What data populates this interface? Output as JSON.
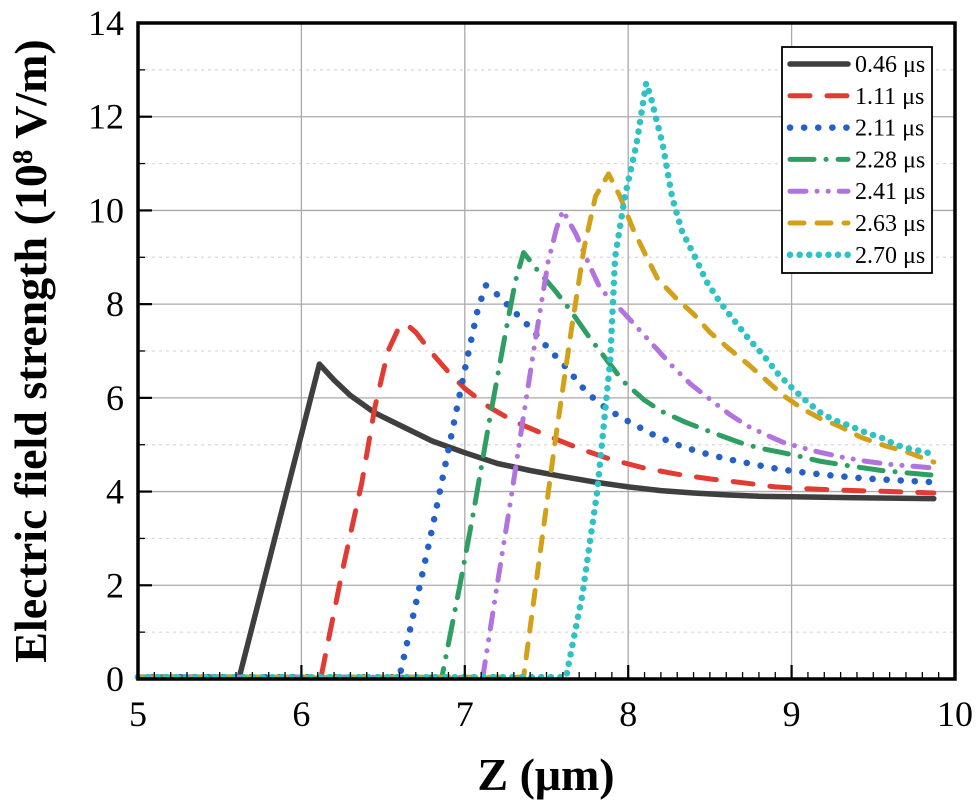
{
  "chart_data": {
    "type": "line",
    "title": "",
    "xlabel": "Z (μm)",
    "ylabel": "Electric field strength (10⁸ V/m)",
    "ylabel_parts": {
      "prefix": "Electric field strength (10",
      "sup": "8",
      "suffix": " V/m)"
    },
    "xlim": [
      5,
      10
    ],
    "ylim": [
      0,
      14
    ],
    "x_major_ticks": [
      5,
      6,
      7,
      8,
      9,
      10
    ],
    "x_minor_tick_step": 0.1,
    "y_major_ticks": [
      0,
      2,
      4,
      6,
      8,
      10,
      12,
      14
    ],
    "y_minor_ticks": [
      1,
      3,
      5,
      7,
      9,
      11,
      13
    ],
    "grid": true,
    "grid_major_color": "#aaaaaa",
    "grid_minor_color": "#d9d9d9",
    "legend_position": "top-right",
    "series": [
      {
        "name": "0.46 μs",
        "color": "#3f3f3f",
        "linestyle": "solid",
        "points": [
          [
            5.0,
            0.04
          ],
          [
            5.62,
            0.04
          ],
          [
            6.11,
            6.72
          ],
          [
            6.2,
            6.38
          ],
          [
            6.3,
            6.05
          ],
          [
            6.45,
            5.68
          ],
          [
            6.6,
            5.42
          ],
          [
            6.8,
            5.08
          ],
          [
            7.0,
            4.83
          ],
          [
            7.2,
            4.6
          ],
          [
            7.4,
            4.45
          ],
          [
            7.6,
            4.32
          ],
          [
            7.8,
            4.2
          ],
          [
            8.0,
            4.1
          ],
          [
            8.2,
            4.02
          ],
          [
            8.4,
            3.97
          ],
          [
            8.6,
            3.93
          ],
          [
            8.8,
            3.9
          ],
          [
            9.0,
            3.89
          ],
          [
            9.2,
            3.88
          ],
          [
            9.4,
            3.87
          ],
          [
            9.6,
            3.86
          ],
          [
            9.87,
            3.85
          ]
        ]
      },
      {
        "name": "1.11 μs",
        "color": "#e23b33",
        "linestyle": "dashed",
        "points": [
          [
            5.0,
            0.04
          ],
          [
            6.12,
            0.04
          ],
          [
            6.25,
            2.3
          ],
          [
            6.37,
            4.2
          ],
          [
            6.45,
            5.8
          ],
          [
            6.53,
            7.0
          ],
          [
            6.59,
            7.45
          ],
          [
            6.64,
            7.58
          ],
          [
            6.7,
            7.4
          ],
          [
            6.8,
            6.95
          ],
          [
            6.9,
            6.55
          ],
          [
            7.0,
            6.2
          ],
          [
            7.15,
            5.8
          ],
          [
            7.3,
            5.5
          ],
          [
            7.5,
            5.2
          ],
          [
            7.7,
            4.92
          ],
          [
            7.9,
            4.68
          ],
          [
            8.1,
            4.5
          ],
          [
            8.3,
            4.37
          ],
          [
            8.5,
            4.27
          ],
          [
            8.7,
            4.19
          ],
          [
            8.9,
            4.1
          ],
          [
            9.1,
            4.06
          ],
          [
            9.3,
            4.03
          ],
          [
            9.5,
            4.01
          ],
          [
            9.7,
            3.99
          ],
          [
            9.87,
            3.97
          ]
        ]
      },
      {
        "name": "2.11 μs",
        "color": "#2361c9",
        "linestyle": "dotted",
        "points": [
          [
            5.0,
            0.04
          ],
          [
            6.6,
            0.04
          ],
          [
            6.7,
            1.6
          ],
          [
            6.8,
            3.2
          ],
          [
            6.9,
            4.9
          ],
          [
            7.0,
            6.6
          ],
          [
            7.08,
            7.9
          ],
          [
            7.13,
            8.4
          ],
          [
            7.2,
            8.2
          ],
          [
            7.3,
            7.85
          ],
          [
            7.4,
            7.5
          ],
          [
            7.5,
            7.1
          ],
          [
            7.62,
            6.65
          ],
          [
            7.75,
            6.1
          ],
          [
            7.87,
            5.76
          ],
          [
            8.0,
            5.5
          ],
          [
            8.15,
            5.22
          ],
          [
            8.3,
            5.0
          ],
          [
            8.44,
            4.84
          ],
          [
            8.6,
            4.7
          ],
          [
            8.77,
            4.58
          ],
          [
            8.92,
            4.48
          ],
          [
            9.07,
            4.41
          ],
          [
            9.25,
            4.34
          ],
          [
            9.45,
            4.28
          ],
          [
            9.65,
            4.24
          ],
          [
            9.87,
            4.2
          ]
        ]
      },
      {
        "name": "2.28 μs",
        "color": "#2f9e62",
        "linestyle": "dash-dot",
        "points": [
          [
            5.0,
            0.04
          ],
          [
            6.86,
            0.04
          ],
          [
            6.97,
            2.0
          ],
          [
            7.05,
            3.5
          ],
          [
            7.15,
            5.5
          ],
          [
            7.25,
            7.4
          ],
          [
            7.31,
            8.5
          ],
          [
            7.36,
            9.1
          ],
          [
            7.45,
            8.7
          ],
          [
            7.55,
            8.3
          ],
          [
            7.65,
            7.85
          ],
          [
            7.75,
            7.35
          ],
          [
            7.87,
            6.8
          ],
          [
            7.97,
            6.35
          ],
          [
            8.1,
            5.95
          ],
          [
            8.2,
            5.72
          ],
          [
            8.35,
            5.48
          ],
          [
            8.5,
            5.28
          ],
          [
            8.68,
            5.05
          ],
          [
            8.8,
            4.93
          ],
          [
            8.93,
            4.84
          ],
          [
            9.05,
            4.75
          ],
          [
            9.17,
            4.65
          ],
          [
            9.35,
            4.55
          ],
          [
            9.55,
            4.45
          ],
          [
            9.7,
            4.4
          ],
          [
            9.87,
            4.35
          ]
        ]
      },
      {
        "name": "2.41 μs",
        "color": "#b273dc",
        "linestyle": "dash-dot-dot",
        "points": [
          [
            5.0,
            0.04
          ],
          [
            7.11,
            0.04
          ],
          [
            7.2,
            2.05
          ],
          [
            7.28,
            3.8
          ],
          [
            7.35,
            5.4
          ],
          [
            7.43,
            7.2
          ],
          [
            7.51,
            8.9
          ],
          [
            7.56,
            9.6
          ],
          [
            7.6,
            10.0
          ],
          [
            7.68,
            9.5
          ],
          [
            7.76,
            8.85
          ],
          [
            7.83,
            8.33
          ],
          [
            7.95,
            7.9
          ],
          [
            8.05,
            7.52
          ],
          [
            8.16,
            7.1
          ],
          [
            8.27,
            6.68
          ],
          [
            8.38,
            6.3
          ],
          [
            8.5,
            5.97
          ],
          [
            8.62,
            5.65
          ],
          [
            8.73,
            5.4
          ],
          [
            8.85,
            5.2
          ],
          [
            8.95,
            5.05
          ],
          [
            9.07,
            4.93
          ],
          [
            9.17,
            4.84
          ],
          [
            9.3,
            4.74
          ],
          [
            9.45,
            4.65
          ],
          [
            9.6,
            4.58
          ],
          [
            9.75,
            4.54
          ],
          [
            9.87,
            4.5
          ]
        ]
      },
      {
        "name": "2.63 μs",
        "color": "#d2a119",
        "linestyle": "dashed-medium",
        "points": [
          [
            5.0,
            0.04
          ],
          [
            7.36,
            0.04
          ],
          [
            7.45,
            2.4
          ],
          [
            7.55,
            5.0
          ],
          [
            7.65,
            7.4
          ],
          [
            7.73,
            9.2
          ],
          [
            7.8,
            10.3
          ],
          [
            7.88,
            10.78
          ],
          [
            7.95,
            10.3
          ],
          [
            8.03,
            9.6
          ],
          [
            8.1,
            9.1
          ],
          [
            8.18,
            8.54
          ],
          [
            8.3,
            8.1
          ],
          [
            8.4,
            7.79
          ],
          [
            8.5,
            7.4
          ],
          [
            8.62,
            7.04
          ],
          [
            8.74,
            6.7
          ],
          [
            8.85,
            6.36
          ],
          [
            8.95,
            6.05
          ],
          [
            9.07,
            5.76
          ],
          [
            9.18,
            5.55
          ],
          [
            9.29,
            5.4
          ],
          [
            9.43,
            5.15
          ],
          [
            9.57,
            4.98
          ],
          [
            9.7,
            4.85
          ],
          [
            9.8,
            4.72
          ],
          [
            9.87,
            4.63
          ]
        ]
      },
      {
        "name": "2.70 μs",
        "color": "#2fc2c4",
        "linestyle": "dotted-dense",
        "points": [
          [
            5.0,
            0.04
          ],
          [
            7.62,
            0.04
          ],
          [
            7.72,
            1.8
          ],
          [
            7.81,
            4.0
          ],
          [
            7.89,
            6.8
          ],
          [
            7.92,
            9.0
          ],
          [
            7.98,
            10.3
          ],
          [
            8.05,
            11.4
          ],
          [
            8.11,
            12.72
          ],
          [
            8.14,
            12.4
          ],
          [
            8.17,
            11.97
          ],
          [
            8.21,
            11.43
          ],
          [
            8.27,
            10.26
          ],
          [
            8.33,
            9.55
          ],
          [
            8.41,
            9.0
          ],
          [
            8.48,
            8.48
          ],
          [
            8.56,
            8.05
          ],
          [
            8.64,
            7.69
          ],
          [
            8.74,
            7.25
          ],
          [
            8.83,
            6.9
          ],
          [
            8.92,
            6.5
          ],
          [
            9.01,
            6.19
          ],
          [
            9.1,
            5.9
          ],
          [
            9.19,
            5.65
          ],
          [
            9.28,
            5.5
          ],
          [
            9.36,
            5.4
          ],
          [
            9.46,
            5.25
          ],
          [
            9.55,
            5.15
          ],
          [
            9.62,
            5.03
          ],
          [
            9.68,
            4.95
          ],
          [
            9.78,
            4.87
          ],
          [
            9.87,
            4.8
          ]
        ]
      }
    ]
  }
}
